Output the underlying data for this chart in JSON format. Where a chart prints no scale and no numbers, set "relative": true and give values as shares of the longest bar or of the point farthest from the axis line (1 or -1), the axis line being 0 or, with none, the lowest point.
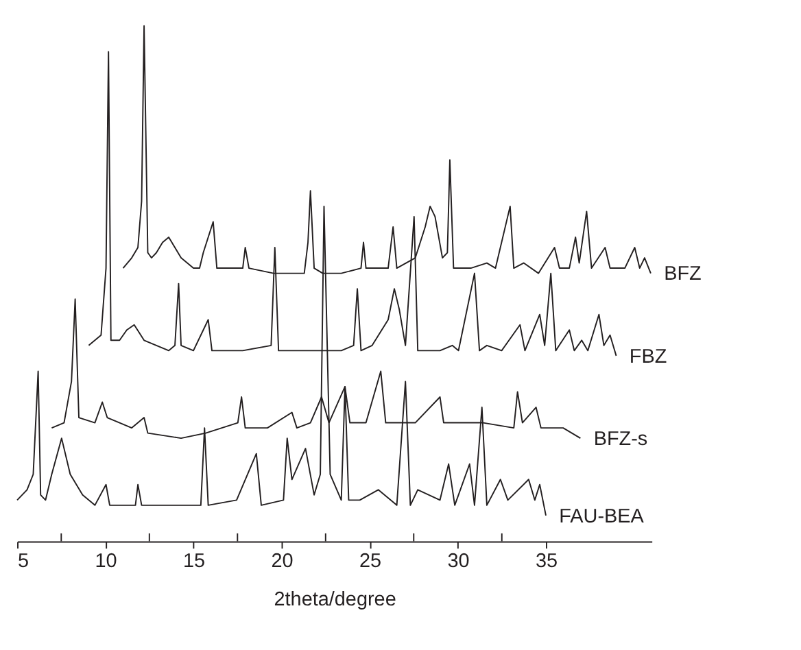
{
  "chart_data": {
    "type": "line",
    "relative": true,
    "xlabel": "2theta/degree",
    "xlim": [
      5,
      41
    ],
    "xticks": [
      5,
      {
        "value": 7.5,
        "label": null
      },
      10,
      {
        "value": 12.5,
        "label": null
      },
      15,
      {
        "value": 17.5,
        "label": null
      },
      20,
      {
        "value": 22.5,
        "label": null
      },
      25,
      {
        "value": 27.5,
        "label": null
      },
      30,
      {
        "value": 32.5,
        "label": null
      },
      35
    ],
    "grid": false,
    "legend": false,
    "marker": "none",
    "line_style": "solid",
    "series": [
      {
        "name": "BFZ",
        "color": "#231f20",
        "x": [
          11.01,
          11.5,
          11.85,
          12.06,
          12.2,
          12.41,
          12.62,
          12.9,
          13.25,
          13.6,
          13.95,
          14.3,
          15.0,
          15.35,
          15.56,
          16.12,
          16.33,
          17.1,
          17.8,
          17.94,
          18.15,
          19.55,
          21.29,
          21.5,
          21.64,
          21.85,
          22.34,
          23.39,
          24.51,
          24.65,
          24.79,
          26.05,
          26.33,
          26.54,
          27.59,
          28.15,
          28.43,
          28.71,
          29.13,
          29.41,
          29.55,
          29.76,
          30.74,
          31.65,
          32.14,
          32.97,
          33.18,
          33.74,
          34.58,
          35.49,
          35.77,
          36.33,
          36.68,
          36.89,
          37.31,
          37.59,
          38.36,
          38.64,
          39.48,
          40.04,
          40.32,
          40.6,
          40.95
        ],
        "values": [
          0.53,
          0.55,
          0.57,
          0.66,
          1.0,
          0.56,
          0.55,
          0.56,
          0.58,
          0.59,
          0.57,
          0.55,
          0.53,
          0.53,
          0.56,
          0.62,
          0.53,
          0.53,
          0.53,
          0.57,
          0.53,
          0.52,
          0.52,
          0.58,
          0.68,
          0.53,
          0.52,
          0.52,
          0.53,
          0.58,
          0.53,
          0.53,
          0.61,
          0.53,
          0.55,
          0.61,
          0.65,
          0.63,
          0.55,
          0.56,
          0.74,
          0.53,
          0.53,
          0.54,
          0.53,
          0.65,
          0.53,
          0.54,
          0.52,
          0.57,
          0.53,
          0.53,
          0.59,
          0.54,
          0.64,
          0.53,
          0.57,
          0.53,
          0.53,
          0.57,
          0.53,
          0.55,
          0.52
        ]
      },
      {
        "name": "FBZ",
        "color": "#231f20",
        "x": [
          9.06,
          9.76,
          10.04,
          10.18,
          10.32,
          10.81,
          11.22,
          11.64,
          12.2,
          12.9,
          13.6,
          13.95,
          14.16,
          14.3,
          15.0,
          15.84,
          16.05,
          17.8,
          19.41,
          19.62,
          19.83,
          21.29,
          22.34,
          23.39,
          24.09,
          24.3,
          24.51,
          25.14,
          26.05,
          26.4,
          26.68,
          27.03,
          27.52,
          27.73,
          28.99,
          29.69,
          30.04,
          30.95,
          31.23,
          31.65,
          32.49,
          33.53,
          33.81,
          34.65,
          34.93,
          35.28,
          35.56,
          36.33,
          36.61,
          37.03,
          37.38,
          38.01,
          38.29,
          38.64,
          38.99
        ],
        "values": [
          0.38,
          0.4,
          0.53,
          0.95,
          0.39,
          0.39,
          0.41,
          0.42,
          0.39,
          0.38,
          0.37,
          0.38,
          0.5,
          0.38,
          0.37,
          0.43,
          0.37,
          0.37,
          0.38,
          0.57,
          0.37,
          0.37,
          0.37,
          0.37,
          0.38,
          0.49,
          0.37,
          0.38,
          0.43,
          0.49,
          0.45,
          0.38,
          0.63,
          0.37,
          0.37,
          0.38,
          0.37,
          0.52,
          0.37,
          0.38,
          0.37,
          0.42,
          0.37,
          0.44,
          0.38,
          0.52,
          0.37,
          0.41,
          0.37,
          0.39,
          0.37,
          0.44,
          0.38,
          0.4,
          0.36
        ]
      },
      {
        "name": "BFZ-s",
        "color": "#231f20",
        "x": [
          6.96,
          7.66,
          8.08,
          8.29,
          8.5,
          9.41,
          9.83,
          10.11,
          10.81,
          11.5,
          12.2,
          12.41,
          14.3,
          15.7,
          17.52,
          17.73,
          17.94,
          19.2,
          20.59,
          20.87,
          21.64,
          22.27,
          22.69,
          23.6,
          23.88,
          24.79,
          25.63,
          25.91,
          27.59,
          28.99,
          29.2,
          31.44,
          33.18,
          33.39,
          33.67,
          34.44,
          34.72,
          35.98,
          36.96
        ],
        "values": [
          0.22,
          0.23,
          0.31,
          0.47,
          0.24,
          0.23,
          0.27,
          0.24,
          0.23,
          0.22,
          0.24,
          0.21,
          0.2,
          0.21,
          0.23,
          0.28,
          0.22,
          0.22,
          0.25,
          0.22,
          0.23,
          0.28,
          0.23,
          0.3,
          0.23,
          0.23,
          0.33,
          0.23,
          0.23,
          0.28,
          0.23,
          0.23,
          0.22,
          0.29,
          0.23,
          0.26,
          0.22,
          0.22,
          0.2
        ]
      },
      {
        "name": "FAU-BEA",
        "color": "#231f20",
        "x": [
          5.0,
          5.56,
          5.91,
          6.19,
          6.33,
          6.61,
          6.96,
          7.52,
          8.01,
          8.71,
          9.41,
          10.04,
          10.25,
          11.71,
          11.85,
          12.06,
          14.3,
          15.42,
          15.63,
          15.84,
          17.45,
          18.57,
          18.85,
          20.11,
          20.32,
          20.59,
          21.36,
          21.85,
          22.2,
          22.41,
          22.76,
          23.39,
          23.6,
          23.81,
          24.44,
          25.49,
          26.54,
          27.03,
          27.31,
          27.73,
          28.99,
          29.48,
          29.83,
          30.67,
          30.95,
          31.37,
          31.65,
          32.42,
          32.84,
          34.02,
          34.37,
          34.65,
          35.0
        ],
        "values": [
          0.08,
          0.1,
          0.13,
          0.33,
          0.09,
          0.08,
          0.13,
          0.2,
          0.13,
          0.09,
          0.07,
          0.11,
          0.07,
          0.07,
          0.11,
          0.07,
          0.07,
          0.07,
          0.22,
          0.07,
          0.08,
          0.17,
          0.07,
          0.08,
          0.2,
          0.12,
          0.18,
          0.09,
          0.13,
          0.65,
          0.13,
          0.08,
          0.3,
          0.08,
          0.08,
          0.1,
          0.07,
          0.31,
          0.07,
          0.1,
          0.08,
          0.15,
          0.07,
          0.15,
          0.07,
          0.26,
          0.07,
          0.12,
          0.08,
          0.12,
          0.08,
          0.11,
          0.05
        ]
      }
    ]
  }
}
